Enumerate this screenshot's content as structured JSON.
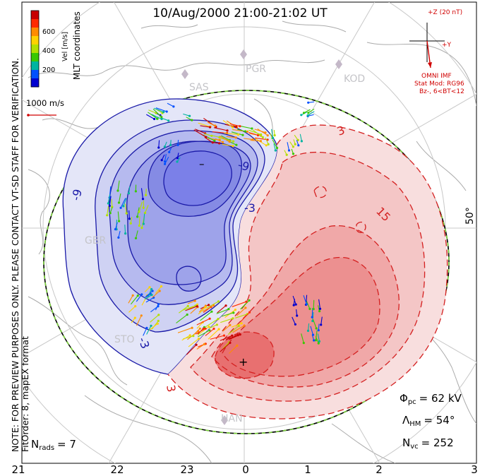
{
  "title": "10/Aug/2000 21:00-21:02 UT",
  "colorbar": {
    "label": "Vel [m/s]",
    "ticks": [
      "600",
      "400",
      "200"
    ],
    "colors": [
      "#c80000",
      "#ff2a00",
      "#ff8c00",
      "#ffd200",
      "#b4e000",
      "#39c800",
      "#00b4a0",
      "#0050ff",
      "#0000d0"
    ]
  },
  "coordinates_label": "MLT coordinates",
  "reference_vector": "1000 m/s",
  "note_line1": "NOTE: FOR PREVIEW PURPOSES ONLY. PLEASE CONTACT VT-SD STAFF FOR VERIFICATION.",
  "note_line2": "FitOrder: 8, mapEX format",
  "imf": {
    "z_label": "+Z (20 nT)",
    "y_label": "+Y",
    "source": "OMNI IMF",
    "model": "Stat Mod: RG96",
    "condition": "Bz-, 6<BT<12"
  },
  "stations": [
    "PGR",
    "KOD",
    "SAS",
    "GBR",
    "STO",
    "HAN"
  ],
  "latitude_label": "50°",
  "contour_labels": [
    "-9",
    "-9",
    "-3",
    "3",
    "15",
    "-3",
    "3"
  ],
  "min_marker": "–",
  "max_marker": "+",
  "stats": {
    "phi_pc": "Φ",
    "phi_pc_sub": "pc",
    "phi_pc_value": "= 62 kV",
    "lambda_hm": "Λ",
    "lambda_hm_sub": "HM",
    "lambda_hm_value": "= 54°",
    "n_vc": "N",
    "n_vc_sub": "vc",
    "n_vc_value": "= 252",
    "n_rads": "N",
    "n_rads_sub": "rads",
    "n_rads_value": "= 7"
  },
  "mlt_ticks": [
    "21",
    "22",
    "23",
    "0",
    "1",
    "2",
    "3"
  ],
  "colors": {
    "negative_cell": "#7b80e8",
    "positive_cell": "#f07070",
    "negative_line": "#1a1aa8",
    "positive_line": "#d42020",
    "grid": "#c8c8c8",
    "coast": "#aaaaaa"
  }
}
